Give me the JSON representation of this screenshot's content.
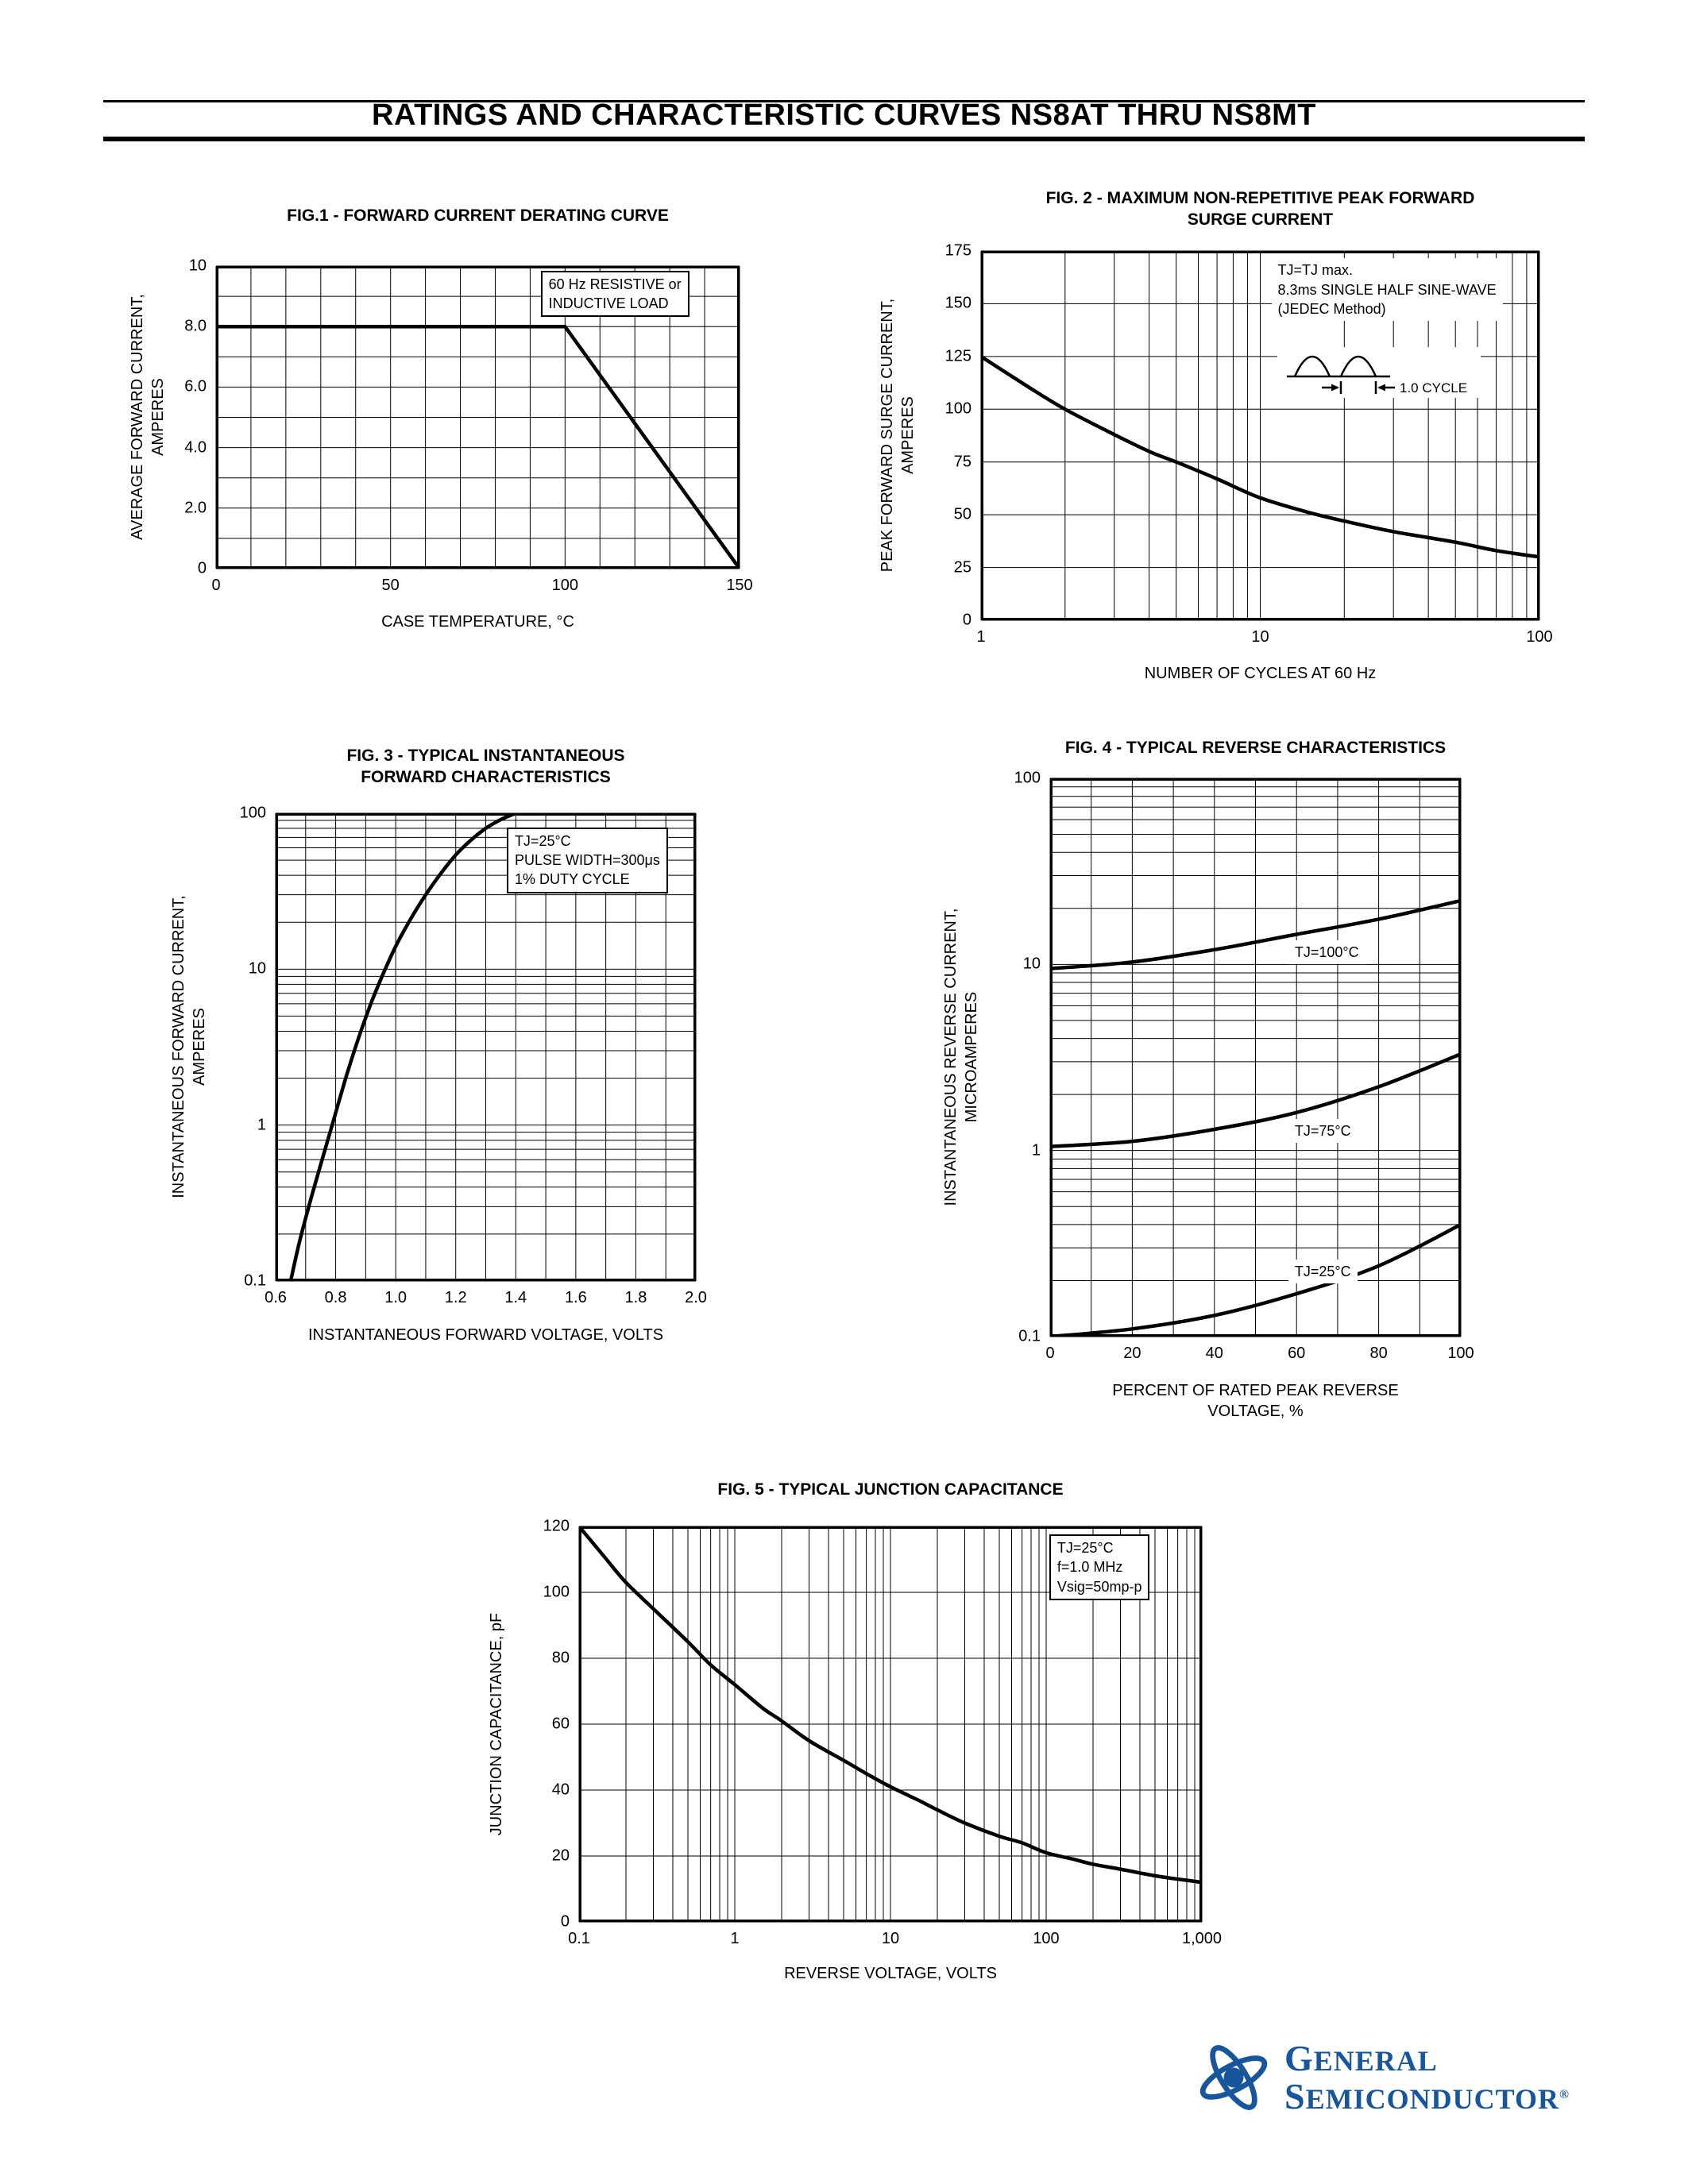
{
  "page": {
    "header_title": "RATINGS AND CHARACTERISTIC CURVES NS8AT THRU NS8MT"
  },
  "brand": {
    "name_line1": "GENERAL",
    "name_line2": "SEMICONDUCTOR",
    "registered_mark": "®",
    "color": "#17559c"
  },
  "chart_data": [
    {
      "id": "fig1",
      "type": "line",
      "title_lines": [
        "FIG.1 - FORWARD CURRENT DERATING CURVE"
      ],
      "ylabel_lines": [
        "AVERAGE FORWARD CURRENT,",
        "AMPERES"
      ],
      "xlabel_lines": [
        "CASE TEMPERATURE, °C"
      ],
      "x_scale": "linear",
      "y_scale": "linear",
      "xlim": [
        0,
        150
      ],
      "ylim": [
        0,
        10
      ],
      "x_ticks": {
        "values": [
          0,
          50,
          100,
          150
        ],
        "labels": [
          "0",
          "50",
          "100",
          "150"
        ]
      },
      "y_ticks": {
        "values": [
          0,
          2,
          4,
          6,
          8,
          10
        ],
        "labels": [
          "0",
          "2.0",
          "4.0",
          "6.0",
          "8.0",
          "10"
        ]
      },
      "x_minor_step": 10,
      "y_minor_step": 1,
      "grid": true,
      "series": [
        {
          "name": "derating-curve",
          "smooth": false,
          "points": [
            [
              0,
              8
            ],
            [
              100,
              8
            ],
            [
              150,
              0
            ]
          ]
        }
      ],
      "annotations": [
        {
          "lines": [
            "60 Hz RESISTIVE or",
            "INDUCTIVE LOAD"
          ],
          "x": 0.62,
          "y": 0.015,
          "boxed": true
        }
      ]
    },
    {
      "id": "fig2",
      "type": "line",
      "title_lines": [
        "FIG. 2 - MAXIMUM NON-REPETITIVE PEAK FORWARD",
        "SURGE CURRENT"
      ],
      "ylabel_lines": [
        "PEAK FORWARD SURGE CURRENT,",
        "AMPERES"
      ],
      "xlabel_lines": [
        "NUMBER OF CYCLES AT 60 Hz"
      ],
      "x_scale": "log",
      "y_scale": "linear",
      "xlim": [
        1,
        100
      ],
      "ylim": [
        0,
        175
      ],
      "x_ticks": {
        "values": [
          1,
          10,
          100
        ],
        "labels": [
          "1",
          "10",
          "100"
        ]
      },
      "y_ticks": {
        "values": [
          0,
          25,
          50,
          75,
          100,
          125,
          150,
          175
        ],
        "labels": [
          "0",
          "25",
          "50",
          "75",
          "100",
          "125",
          "150",
          "175"
        ]
      },
      "y_minor_step": 25,
      "grid": true,
      "series": [
        {
          "name": "surge-current",
          "points": [
            [
              1,
              125
            ],
            [
              1.5,
              110
            ],
            [
              2,
              100
            ],
            [
              3,
              88
            ],
            [
              4,
              80
            ],
            [
              5,
              75
            ],
            [
              7,
              67
            ],
            [
              10,
              58
            ],
            [
              15,
              51
            ],
            [
              20,
              47
            ],
            [
              30,
              42
            ],
            [
              50,
              37
            ],
            [
              70,
              33
            ],
            [
              100,
              30
            ]
          ]
        }
      ],
      "annotations": [
        {
          "lines": [
            "TJ=TJ max.",
            "8.3ms SINGLE HALF SINE-WAVE",
            "(JEDEC Method)"
          ],
          "x": 0.52,
          "y": 0.02,
          "boxed": false
        },
        {
          "icon": "sine-cycle",
          "icon_label": "1.0 CYCLE",
          "x": 0.53,
          "y": 0.26,
          "boxed": false
        }
      ]
    },
    {
      "id": "fig3",
      "type": "line",
      "title_lines": [
        "FIG. 3 - TYPICAL INSTANTANEOUS",
        "FORWARD CHARACTERISTICS"
      ],
      "ylabel_lines": [
        "INSTANTANEOUS FORWARD CURRENT,",
        "AMPERES"
      ],
      "xlabel_lines": [
        "INSTANTANEOUS FORWARD VOLTAGE, VOLTS"
      ],
      "x_scale": "linear",
      "y_scale": "log",
      "xlim": [
        0.6,
        2.0
      ],
      "ylim": [
        0.1,
        100
      ],
      "x_ticks": {
        "values": [
          0.6,
          0.8,
          1.0,
          1.2,
          1.4,
          1.6,
          1.8,
          2.0
        ],
        "labels": [
          "0.6",
          "0.8",
          "1.0",
          "1.2",
          "1.4",
          "1.6",
          "1.8",
          "2.0"
        ]
      },
      "y_ticks": {
        "values": [
          0.1,
          1,
          10,
          100
        ],
        "labels": [
          "0.1",
          "1",
          "10",
          "100"
        ]
      },
      "x_minor_step": 0.1,
      "grid": true,
      "series": [
        {
          "name": "forward-characteristic",
          "points": [
            [
              0.65,
              0.1
            ],
            [
              0.68,
              0.18
            ],
            [
              0.72,
              0.35
            ],
            [
              0.76,
              0.65
            ],
            [
              0.8,
              1.2
            ],
            [
              0.84,
              2.2
            ],
            [
              0.88,
              3.8
            ],
            [
              0.92,
              6.2
            ],
            [
              0.96,
              9.5
            ],
            [
              1.0,
              14
            ],
            [
              1.05,
              21
            ],
            [
              1.1,
              30
            ],
            [
              1.15,
              41
            ],
            [
              1.2,
              54
            ],
            [
              1.25,
              67
            ],
            [
              1.3,
              80
            ],
            [
              1.35,
              91
            ],
            [
              1.4,
              100
            ]
          ]
        }
      ],
      "annotations": [
        {
          "lines": [
            "TJ=25°C",
            "PULSE WIDTH=300μs",
            "1% DUTY CYCLE"
          ],
          "x": 0.55,
          "y": 0.03,
          "boxed": true
        }
      ]
    },
    {
      "id": "fig4",
      "type": "line",
      "title_lines": [
        "FIG. 4 - TYPICAL REVERSE CHARACTERISTICS"
      ],
      "ylabel_lines": [
        "INSTANTANEOUS REVERSE CURRENT,",
        "MICROAMPERES"
      ],
      "xlabel_lines": [
        "PERCENT OF RATED PEAK REVERSE",
        "VOLTAGE, %"
      ],
      "x_scale": "linear",
      "y_scale": "log",
      "xlim": [
        0,
        100
      ],
      "ylim": [
        0.1,
        100
      ],
      "x_ticks": {
        "values": [
          0,
          20,
          40,
          60,
          80,
          100
        ],
        "labels": [
          "0",
          "20",
          "40",
          "60",
          "80",
          "100"
        ]
      },
      "y_ticks": {
        "values": [
          0.1,
          1,
          10,
          100
        ],
        "labels": [
          "0.1",
          "1",
          "10",
          "100"
        ]
      },
      "x_minor_step": 10,
      "grid": true,
      "series": [
        {
          "name": "tj-100c-curve",
          "points": [
            [
              0,
              9.5
            ],
            [
              20,
              10.3
            ],
            [
              40,
              12
            ],
            [
              60,
              14.5
            ],
            [
              80,
              17.5
            ],
            [
              100,
              22
            ]
          ]
        },
        {
          "name": "tj-75c-curve",
          "points": [
            [
              0,
              1.05
            ],
            [
              20,
              1.12
            ],
            [
              40,
              1.3
            ],
            [
              60,
              1.6
            ],
            [
              80,
              2.2
            ],
            [
              100,
              3.3
            ]
          ]
        },
        {
          "name": "tj-25c-curve",
          "points": [
            [
              0,
              0.1
            ],
            [
              20,
              0.11
            ],
            [
              40,
              0.13
            ],
            [
              60,
              0.17
            ],
            [
              80,
              0.24
            ],
            [
              100,
              0.4
            ]
          ]
        }
      ],
      "annotations": [
        {
          "lines": [
            "TJ=100°C"
          ],
          "x": 0.58,
          "y": 0.29,
          "boxed": false
        },
        {
          "lines": [
            "TJ=75°C"
          ],
          "x": 0.58,
          "y": 0.61,
          "boxed": false
        },
        {
          "lines": [
            "TJ=25°C"
          ],
          "x": 0.58,
          "y": 0.862,
          "boxed": false
        }
      ]
    },
    {
      "id": "fig5",
      "type": "line",
      "title_lines": [
        "FIG. 5 - TYPICAL JUNCTION CAPACITANCE"
      ],
      "ylabel_lines": [
        "JUNCTION CAPACITANCE, pF"
      ],
      "xlabel_lines": [
        "REVERSE VOLTAGE, VOLTS"
      ],
      "x_scale": "log",
      "y_scale": "linear",
      "xlim": [
        0.1,
        1000
      ],
      "ylim": [
        0,
        120
      ],
      "x_ticks": {
        "values": [
          0.1,
          1,
          10,
          100,
          1000
        ],
        "labels": [
          "0.1",
          "1",
          "10",
          "100",
          "1,000"
        ]
      },
      "y_ticks": {
        "values": [
          0,
          20,
          40,
          60,
          80,
          100,
          120
        ],
        "labels": [
          "0",
          "20",
          "40",
          "60",
          "80",
          "100",
          "120"
        ]
      },
      "y_minor_step": 20,
      "grid": true,
      "series": [
        {
          "name": "junction-capacitance",
          "points": [
            [
              0.1,
              120
            ],
            [
              0.15,
              110
            ],
            [
              0.2,
              103
            ],
            [
              0.3,
              95
            ],
            [
              0.5,
              85
            ],
            [
              0.7,
              78
            ],
            [
              1,
              72
            ],
            [
              1.5,
              65
            ],
            [
              2,
              61
            ],
            [
              3,
              55
            ],
            [
              5,
              49
            ],
            [
              7,
              45
            ],
            [
              10,
              41
            ],
            [
              15,
              37
            ],
            [
              20,
              34
            ],
            [
              30,
              30
            ],
            [
              50,
              26
            ],
            [
              70,
              24
            ],
            [
              100,
              21
            ],
            [
              150,
              19
            ],
            [
              200,
              17.5
            ],
            [
              300,
              16
            ],
            [
              500,
              14
            ],
            [
              700,
              13
            ],
            [
              1000,
              12
            ]
          ]
        }
      ],
      "annotations": [
        {
          "lines": [
            "TJ=25°C",
            "f=1.0 MHz",
            "Vsig=50mp-p"
          ],
          "x": 0.755,
          "y": 0.02,
          "boxed": true
        }
      ]
    }
  ]
}
